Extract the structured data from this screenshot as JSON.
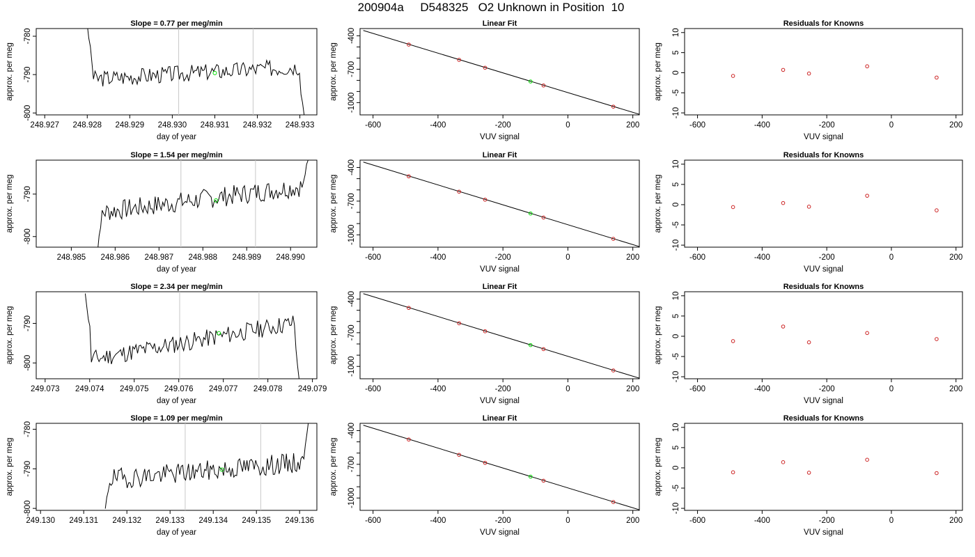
{
  "title": "200904a     D548325   O2 Unknown in Position  10",
  "chart_data": [
    {
      "type": "line",
      "panel": "time-series",
      "row": 1,
      "title": "Slope =  0.77  per meg/min",
      "xlabel": "day of year",
      "ylabel": "approx. per meg",
      "xlim": [
        248.9268,
        248.9334
      ],
      "ylim": [
        -800.5,
        -778.0
      ],
      "xticks": [
        "248.927",
        "248.928",
        "248.929",
        "248.930",
        "248.931",
        "248.932",
        "248.933"
      ],
      "yticks": [
        "-800",
        "-790",
        "-780"
      ],
      "x_range": [
        248.928,
        248.9331
      ],
      "y_start": -778.0,
      "y_end": -800.5,
      "baseline": -789.5,
      "trend": 0.77,
      "noise": 2.2,
      "seed": 3,
      "vlines": [
        248.93015,
        248.9319
      ],
      "highlight_point": {
        "x": 248.931,
        "y": -789.6,
        "color": "#00dd00"
      }
    },
    {
      "type": "scatter",
      "panel": "linear-fit",
      "row": 1,
      "title": "Linear Fit",
      "xlabel": "VUV signal",
      "ylabel": "approx. per meg",
      "xlim": [
        -640,
        220
      ],
      "ylim": [
        -1110,
        -335
      ],
      "xticks": [
        -600,
        -400,
        -200,
        0,
        200
      ],
      "yticks": [
        -400,
        -700,
        -1000
      ],
      "line": {
        "x": [
          -630,
          220
        ],
        "y": [
          -352,
          -1105
        ]
      },
      "knowns": {
        "x": [
          -490,
          -335,
          -255,
          -75,
          140
        ],
        "y": [
          -479,
          -616,
          -687,
          -846,
          -1036
        ],
        "color": "#cc2222"
      },
      "unknown": {
        "x": -115,
        "y": -810,
        "color": "#00dd00"
      }
    },
    {
      "type": "scatter",
      "panel": "residuals",
      "row": 1,
      "title": "Residuals for Knowns",
      "xlabel": "VUV signal",
      "ylabel": "approx. per meg",
      "xlim": [
        -640,
        220
      ],
      "ylim": [
        -10.5,
        11
      ],
      "xticks": [
        -600,
        -400,
        -200,
        0,
        200
      ],
      "yticks": [
        -10,
        -5,
        0,
        5,
        10
      ],
      "x": [
        -490,
        -335,
        -255,
        -75,
        140
      ],
      "y": [
        -0.8,
        0.7,
        -0.2,
        1.6,
        -1.2
      ],
      "color": "#cc2222"
    },
    {
      "type": "line",
      "panel": "time-series",
      "row": 2,
      "title": "Slope =  1.54  per meg/min",
      "xlabel": "day of year",
      "ylabel": "approx. per meg",
      "xlim": [
        248.9842,
        248.9906
      ],
      "ylim": [
        -802.5,
        -782.0
      ],
      "xticks": [
        "248.985",
        "248.986",
        "248.987",
        "248.988",
        "248.989",
        "248.990"
      ],
      "yticks": [
        "-800",
        "-790"
      ],
      "x_range": [
        248.9856,
        248.9904
      ],
      "y_start": -802.5,
      "y_end": -782.0,
      "baseline": -791.2,
      "trend": 1.54,
      "noise": 2.4,
      "seed": 7,
      "vlines": [
        248.9875,
        248.9892
      ],
      "highlight_point": {
        "x": 248.9883,
        "y": -791.5,
        "color": "#00dd00"
      }
    },
    {
      "type": "scatter",
      "panel": "linear-fit",
      "row": 2,
      "title": "Linear Fit",
      "xlabel": "VUV signal",
      "ylabel": "approx. per meg",
      "xlim": [
        -640,
        220
      ],
      "ylim": [
        -1110,
        -335
      ],
      "xticks": [
        -600,
        -400,
        -200,
        0,
        200
      ],
      "yticks": [
        -400,
        -700,
        -1000
      ],
      "line": {
        "x": [
          -630,
          220
        ],
        "y": [
          -352,
          -1105
        ]
      },
      "knowns": {
        "x": [
          -490,
          -335,
          -255,
          -75,
          140
        ],
        "y": [
          -479,
          -616,
          -687,
          -846,
          -1036
        ],
        "color": "#cc2222"
      },
      "unknown": {
        "x": -115,
        "y": -810,
        "color": "#00dd00"
      }
    },
    {
      "type": "scatter",
      "panel": "residuals",
      "row": 2,
      "title": "Residuals for Knowns",
      "xlabel": "VUV signal",
      "ylabel": "approx. per meg",
      "xlim": [
        -640,
        220
      ],
      "ylim": [
        -10.5,
        11
      ],
      "xticks": [
        -600,
        -400,
        -200,
        0,
        200
      ],
      "yticks": [
        -10,
        -5,
        0,
        5,
        10
      ],
      "x": [
        -490,
        -335,
        -255,
        -75,
        140
      ],
      "y": [
        -0.6,
        0.4,
        -0.5,
        2.2,
        -1.4
      ],
      "color": "#cc2222"
    },
    {
      "type": "line",
      "panel": "time-series",
      "row": 3,
      "title": "Slope =  2.34  per meg/min",
      "xlabel": "day of year",
      "ylabel": "approx. per meg",
      "xlim": [
        249.0728,
        249.0791
      ],
      "ylim": [
        -804.0,
        -782.0
      ],
      "xticks": [
        "249.073",
        "249.074",
        "249.075",
        "249.076",
        "249.077",
        "249.078",
        "249.079"
      ],
      "yticks": [
        "-800",
        "-790"
      ],
      "x_range": [
        249.0739,
        249.0787
      ],
      "y_start": -782.0,
      "y_end": -804.0,
      "baseline": -794.5,
      "trend": 2.34,
      "noise": 2.3,
      "seed": 11,
      "vlines": [
        249.07602,
        249.0778
      ],
      "highlight_point": {
        "x": 249.0769,
        "y": -792.5,
        "color": "#00dd00"
      }
    },
    {
      "type": "scatter",
      "panel": "linear-fit",
      "row": 3,
      "title": "Linear Fit",
      "xlabel": "VUV signal",
      "ylabel": "approx. per meg",
      "xlim": [
        -640,
        220
      ],
      "ylim": [
        -1110,
        -335
      ],
      "xticks": [
        -600,
        -400,
        -200,
        0,
        200
      ],
      "yticks": [
        -400,
        -700,
        -1000
      ],
      "line": {
        "x": [
          -630,
          220
        ],
        "y": [
          -352,
          -1105
        ]
      },
      "knowns": {
        "x": [
          -490,
          -335,
          -255,
          -75,
          140
        ],
        "y": [
          -479,
          -616,
          -687,
          -846,
          -1036
        ],
        "color": "#cc2222"
      },
      "unknown": {
        "x": -115,
        "y": -810,
        "color": "#00dd00"
      }
    },
    {
      "type": "scatter",
      "panel": "residuals",
      "row": 3,
      "title": "Residuals for Knowns",
      "xlabel": "VUV signal",
      "ylabel": "approx. per meg",
      "xlim": [
        -640,
        220
      ],
      "ylim": [
        -10.5,
        11
      ],
      "xticks": [
        -600,
        -400,
        -200,
        0,
        200
      ],
      "yticks": [
        -10,
        -5,
        0,
        5,
        10
      ],
      "x": [
        -490,
        -335,
        -255,
        -75,
        140
      ],
      "y": [
        -1.2,
        2.4,
        -1.5,
        0.8,
        -0.7
      ],
      "color": "#cc2222"
    },
    {
      "type": "line",
      "panel": "time-series",
      "row": 4,
      "title": "Slope =  1.09  per meg/min",
      "xlabel": "day of year",
      "ylabel": "approx. per meg",
      "xlim": [
        249.1299,
        249.1364
      ],
      "ylim": [
        -800.5,
        -778.5
      ],
      "xticks": [
        "249.130",
        "249.131",
        "249.132",
        "249.133",
        "249.134",
        "249.135",
        "249.136"
      ],
      "yticks": [
        "-800",
        "-790",
        "-780"
      ],
      "x_range": [
        249.1315,
        249.1362
      ],
      "y_start": -800.5,
      "y_end": -778.5,
      "baseline": -790.5,
      "trend": 1.09,
      "noise": 2.6,
      "seed": 19,
      "vlines": [
        249.13335,
        249.1351
      ],
      "highlight_point": {
        "x": 249.1342,
        "y": -790.2,
        "color": "#00dd00"
      }
    },
    {
      "type": "scatter",
      "panel": "linear-fit",
      "row": 4,
      "title": "Linear Fit",
      "xlabel": "VUV signal",
      "ylabel": "approx. per meg",
      "xlim": [
        -640,
        220
      ],
      "ylim": [
        -1110,
        -335
      ],
      "xticks": [
        -600,
        -400,
        -200,
        0,
        200
      ],
      "yticks": [
        -400,
        -700,
        -1000
      ],
      "line": {
        "x": [
          -630,
          220
        ],
        "y": [
          -352,
          -1105
        ]
      },
      "knowns": {
        "x": [
          -490,
          -335,
          -255,
          -75,
          140
        ],
        "y": [
          -479,
          -616,
          -687,
          -846,
          -1036
        ],
        "color": "#cc2222"
      },
      "unknown": {
        "x": -115,
        "y": -810,
        "color": "#00dd00"
      }
    },
    {
      "type": "scatter",
      "panel": "residuals",
      "row": 4,
      "title": "Residuals for Knowns",
      "xlabel": "VUV signal",
      "ylabel": "approx. per meg",
      "xlim": [
        -640,
        220
      ],
      "ylim": [
        -10.5,
        11
      ],
      "xticks": [
        -600,
        -400,
        -200,
        0,
        200
      ],
      "yticks": [
        -10,
        -5,
        0,
        5,
        10
      ],
      "x": [
        -490,
        -335,
        -255,
        -75,
        140
      ],
      "y": [
        -1.1,
        1.4,
        -1.2,
        2.0,
        -1.3
      ],
      "color": "#cc2222"
    }
  ]
}
